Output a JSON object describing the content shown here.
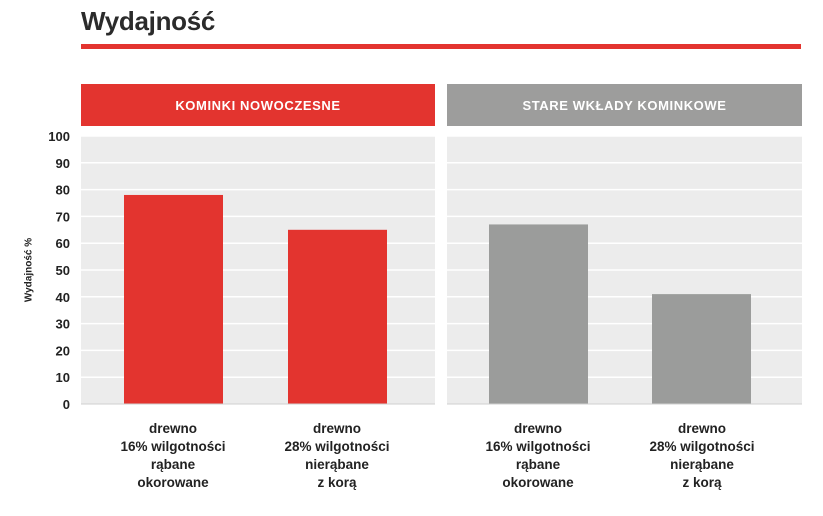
{
  "page": {
    "title": "Wydajność"
  },
  "colors": {
    "accent": "#e3342f",
    "gray_bar": "#9b9c9b",
    "header_gray": "#9d9d9c",
    "plot_bg": "#ececec",
    "grid": "#ffffff"
  },
  "chart_data": {
    "type": "bar",
    "ylabel": "Wydajność %",
    "ylim": [
      0,
      100
    ],
    "yticks": [
      "0",
      "10",
      "20",
      "30",
      "40",
      "50",
      "60",
      "70",
      "80",
      "90",
      "100"
    ],
    "grid": true,
    "panels": [
      {
        "title": "KOMINKI NOWOCZESNE",
        "color": "#e3342f",
        "categories": [
          "drewno\n16% wilgotności\nrąbane\nokorowane",
          "drewno\n28% wilgotności\nnierąbane\nz korą"
        ],
        "values": [
          78,
          65
        ]
      },
      {
        "title": "STARE WKŁADY KOMINKOWE",
        "color": "#9b9c9b",
        "categories": [
          "drewno\n16% wilgotności\nrąbane\nokorowane",
          "drewno\n28% wilgotności\nnierąbane\nz korą"
        ],
        "values": [
          67,
          41
        ]
      }
    ]
  }
}
